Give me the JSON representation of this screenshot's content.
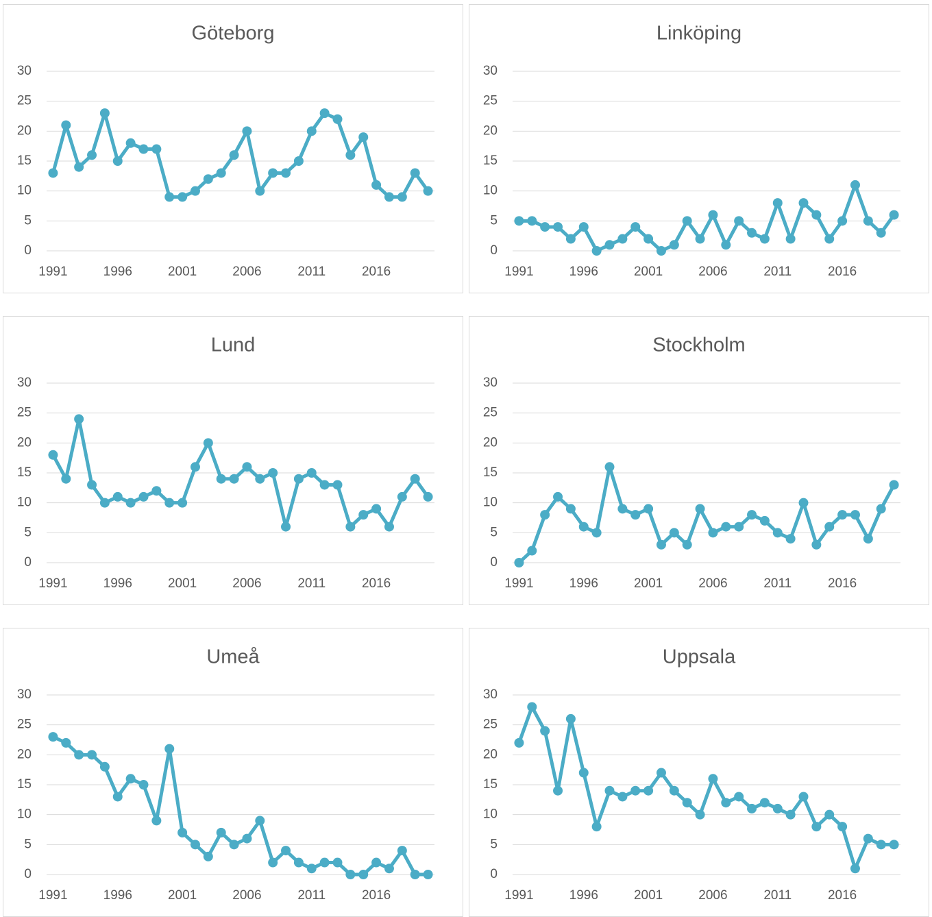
{
  "chart_data": [
    {
      "type": "line",
      "title": "Göteborg",
      "x": [
        1991,
        1992,
        1993,
        1994,
        1995,
        1996,
        1997,
        1998,
        1999,
        2000,
        2001,
        2002,
        2003,
        2004,
        2005,
        2006,
        2007,
        2008,
        2009,
        2010,
        2011,
        2012,
        2013,
        2014,
        2015,
        2016,
        2017,
        2018,
        2019,
        2020
      ],
      "values": [
        13,
        21,
        14,
        16,
        23,
        15,
        18,
        17,
        17,
        9,
        9,
        10,
        12,
        13,
        16,
        20,
        10,
        13,
        13,
        15,
        20,
        23,
        22,
        16,
        19,
        11,
        9,
        9,
        13,
        10
      ],
      "color": "#4bacc6",
      "xlim": [
        1990.5,
        2020.5
      ],
      "xticks": [
        1991,
        1996,
        2001,
        2006,
        2011,
        2016
      ],
      "ylim": [
        0,
        30
      ],
      "yticks": [
        0,
        5,
        10,
        15,
        20,
        25,
        30
      ],
      "grid": true
    },
    {
      "type": "line",
      "title": "Linköping",
      "x": [
        1991,
        1992,
        1993,
        1994,
        1995,
        1996,
        1997,
        1998,
        1999,
        2000,
        2001,
        2002,
        2003,
        2004,
        2005,
        2006,
        2007,
        2008,
        2009,
        2010,
        2011,
        2012,
        2013,
        2014,
        2015,
        2016,
        2017,
        2018,
        2019,
        2020
      ],
      "values": [
        5,
        5,
        4,
        4,
        2,
        4,
        0,
        1,
        2,
        4,
        2,
        0,
        1,
        5,
        2,
        6,
        1,
        5,
        3,
        2,
        8,
        2,
        8,
        6,
        2,
        5,
        11,
        5,
        3,
        6
      ],
      "color": "#4bacc6",
      "xlim": [
        1990.5,
        2020.5
      ],
      "xticks": [
        1991,
        1996,
        2001,
        2006,
        2011,
        2016
      ],
      "ylim": [
        0,
        30
      ],
      "yticks": [
        0,
        5,
        10,
        15,
        20,
        25,
        30
      ],
      "grid": true
    },
    {
      "type": "line",
      "title": "Lund",
      "x": [
        1991,
        1992,
        1993,
        1994,
        1995,
        1996,
        1997,
        1998,
        1999,
        2000,
        2001,
        2002,
        2003,
        2004,
        2005,
        2006,
        2007,
        2008,
        2009,
        2010,
        2011,
        2012,
        2013,
        2014,
        2015,
        2016,
        2017,
        2018,
        2019,
        2020
      ],
      "values": [
        18,
        14,
        24,
        13,
        10,
        11,
        10,
        11,
        12,
        10,
        10,
        16,
        20,
        14,
        14,
        16,
        14,
        15,
        6,
        14,
        15,
        13,
        13,
        6,
        8,
        9,
        6,
        11,
        14,
        11
      ],
      "color": "#4bacc6",
      "xlim": [
        1990.5,
        2020.5
      ],
      "xticks": [
        1991,
        1996,
        2001,
        2006,
        2011,
        2016
      ],
      "ylim": [
        0,
        30
      ],
      "yticks": [
        0,
        5,
        10,
        15,
        20,
        25,
        30
      ],
      "grid": true
    },
    {
      "type": "line",
      "title": "Stockholm",
      "x": [
        1991,
        1992,
        1993,
        1994,
        1995,
        1996,
        1997,
        1998,
        1999,
        2000,
        2001,
        2002,
        2003,
        2004,
        2005,
        2006,
        2007,
        2008,
        2009,
        2010,
        2011,
        2012,
        2013,
        2014,
        2015,
        2016,
        2017,
        2018,
        2019,
        2020
      ],
      "values": [
        0,
        2,
        8,
        11,
        9,
        6,
        5,
        16,
        9,
        8,
        9,
        3,
        5,
        3,
        9,
        5,
        6,
        6,
        8,
        7,
        5,
        4,
        10,
        3,
        6,
        8,
        8,
        4,
        9,
        13
      ],
      "color": "#4bacc6",
      "xlim": [
        1990.5,
        2020.5
      ],
      "xticks": [
        1991,
        1996,
        2001,
        2006,
        2011,
        2016
      ],
      "ylim": [
        0,
        30
      ],
      "yticks": [
        0,
        5,
        10,
        15,
        20,
        25,
        30
      ],
      "grid": true
    },
    {
      "type": "line",
      "title": "Umeå",
      "x": [
        1991,
        1992,
        1993,
        1994,
        1995,
        1996,
        1997,
        1998,
        1999,
        2000,
        2001,
        2002,
        2003,
        2004,
        2005,
        2006,
        2007,
        2008,
        2009,
        2010,
        2011,
        2012,
        2013,
        2014,
        2015,
        2016,
        2017,
        2018,
        2019,
        2020
      ],
      "values": [
        23,
        22,
        20,
        20,
        18,
        13,
        16,
        15,
        9,
        21,
        7,
        5,
        3,
        7,
        5,
        6,
        9,
        2,
        4,
        2,
        1,
        2,
        2,
        0,
        0,
        2,
        1,
        4,
        0,
        0
      ],
      "color": "#4bacc6",
      "xlim": [
        1990.5,
        2020.5
      ],
      "xticks": [
        1991,
        1996,
        2001,
        2006,
        2011,
        2016
      ],
      "ylim": [
        0,
        30
      ],
      "yticks": [
        0,
        5,
        10,
        15,
        20,
        25,
        30
      ],
      "grid": true
    },
    {
      "type": "line",
      "title": "Uppsala",
      "x": [
        1991,
        1992,
        1993,
        1994,
        1995,
        1996,
        1997,
        1998,
        1999,
        2000,
        2001,
        2002,
        2003,
        2004,
        2005,
        2006,
        2007,
        2008,
        2009,
        2010,
        2011,
        2012,
        2013,
        2014,
        2015,
        2016,
        2017,
        2018,
        2019,
        2020
      ],
      "values": [
        22,
        28,
        24,
        14,
        26,
        17,
        8,
        14,
        13,
        14,
        14,
        17,
        14,
        12,
        10,
        16,
        12,
        13,
        11,
        12,
        11,
        10,
        13,
        8,
        10,
        8,
        1,
        6,
        5,
        5
      ],
      "color": "#4bacc6",
      "xlim": [
        1990.5,
        2020.5
      ],
      "xticks": [
        1991,
        1996,
        2001,
        2006,
        2011,
        2016
      ],
      "ylim": [
        0,
        30
      ],
      "yticks": [
        0,
        5,
        10,
        15,
        20,
        25,
        30
      ],
      "grid": true
    }
  ]
}
